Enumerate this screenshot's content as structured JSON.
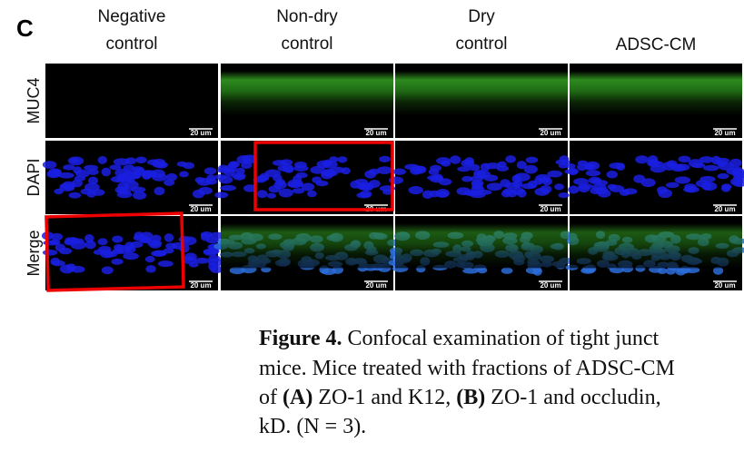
{
  "panel_label": "C",
  "columns": [
    [
      "Negative",
      "control"
    ],
    [
      "Non-dry",
      "control"
    ],
    [
      "Dry",
      "control"
    ],
    [
      "ADSC-CM"
    ]
  ],
  "rows": [
    {
      "label": "MUC4",
      "cells": [
        "20 um",
        "20 um",
        "20 um",
        "20 um"
      ]
    },
    {
      "label": "DAPI",
      "cells": [
        "20 um",
        "20 um",
        "20 um",
        "20 um"
      ]
    },
    {
      "label": "Merge",
      "cells": [
        "20 um",
        "20 um",
        "20 um",
        "20 um"
      ]
    }
  ],
  "caption": {
    "lines": [
      [
        {
          "text": "Figure 4.",
          "bold": true
        },
        {
          "text": "  Confocal examination of tight junct",
          "bold": false
        }
      ],
      [
        {
          "text": "mice. Mice treated with fractions of ADSC-CM",
          "bold": false
        }
      ],
      [
        {
          "text": "of ",
          "bold": false
        },
        {
          "text": "(A)",
          "bold": true
        },
        {
          "text": " ZO-1 and K12, ",
          "bold": false
        },
        {
          "text": "(B)",
          "bold": true
        },
        {
          "text": " ZO-1 and occludin,",
          "bold": false
        }
      ],
      [
        {
          "text": "kD. (N = 3).",
          "bold": false
        }
      ]
    ]
  }
}
